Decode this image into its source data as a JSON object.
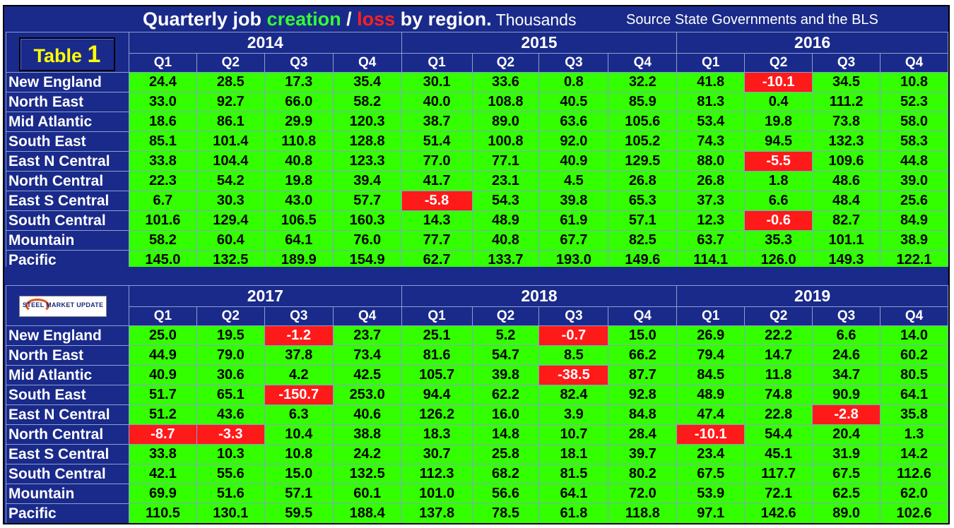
{
  "title": {
    "part1": "Quarterly job ",
    "creation": "creation",
    "slash": " / ",
    "loss": "loss",
    "part2": " by region.",
    "units": "Thousands",
    "source": "Source State Governments and the BLS"
  },
  "badge": {
    "label": "Table ",
    "number": "1"
  },
  "logo": {
    "text": "STEEL MARKET UPDATE"
  },
  "quarters": [
    "Q1",
    "Q2",
    "Q3",
    "Q4"
  ],
  "top": {
    "years": [
      "2014",
      "2015",
      "2016"
    ],
    "rows": [
      {
        "region": "New England",
        "values": [
          "24.4",
          "28.5",
          "17.3",
          "35.4",
          "30.1",
          "33.6",
          "0.8",
          "32.2",
          "41.8",
          "-10.1",
          "34.5",
          "10.8"
        ]
      },
      {
        "region": "North East",
        "values": [
          "33.0",
          "92.7",
          "66.0",
          "58.2",
          "40.0",
          "108.8",
          "40.5",
          "85.9",
          "81.3",
          "0.4",
          "111.2",
          "52.3"
        ]
      },
      {
        "region": "Mid Atlantic",
        "values": [
          "18.6",
          "86.1",
          "29.9",
          "120.3",
          "38.7",
          "89.0",
          "63.6",
          "105.6",
          "53.4",
          "19.8",
          "73.8",
          "58.0"
        ]
      },
      {
        "region": "South East",
        "values": [
          "85.1",
          "101.4",
          "110.8",
          "128.8",
          "51.4",
          "100.8",
          "92.0",
          "105.2",
          "74.3",
          "94.5",
          "132.3",
          "58.3"
        ]
      },
      {
        "region": "East N Central",
        "values": [
          "33.8",
          "104.4",
          "40.8",
          "123.3",
          "77.0",
          "77.1",
          "40.9",
          "129.5",
          "88.0",
          "-5.5",
          "109.6",
          "44.8"
        ]
      },
      {
        "region": "North Central",
        "values": [
          "22.3",
          "54.2",
          "19.8",
          "39.4",
          "41.7",
          "23.1",
          "4.5",
          "26.8",
          "26.8",
          "1.8",
          "48.6",
          "39.0"
        ]
      },
      {
        "region": "East S Central",
        "values": [
          "6.7",
          "30.3",
          "43.0",
          "57.7",
          "-5.8",
          "54.3",
          "39.8",
          "65.3",
          "37.3",
          "6.6",
          "48.4",
          "25.6"
        ]
      },
      {
        "region": "South Central",
        "values": [
          "101.6",
          "129.4",
          "106.5",
          "160.3",
          "14.3",
          "48.9",
          "61.9",
          "57.1",
          "12.3",
          "-0.6",
          "82.7",
          "84.9"
        ]
      },
      {
        "region": "Mountain",
        "values": [
          "58.2",
          "60.4",
          "64.1",
          "76.0",
          "77.7",
          "40.8",
          "67.7",
          "82.5",
          "63.7",
          "35.3",
          "101.1",
          "38.9"
        ]
      },
      {
        "region": "Pacific",
        "values": [
          "145.0",
          "132.5",
          "189.9",
          "154.9",
          "62.7",
          "133.7",
          "193.0",
          "149.6",
          "114.1",
          "126.0",
          "149.3",
          "122.1"
        ]
      }
    ]
  },
  "bottom": {
    "years": [
      "2017",
      "2018",
      "2019"
    ],
    "rows": [
      {
        "region": "New England",
        "values": [
          "25.0",
          "19.5",
          "-1.2",
          "23.7",
          "25.1",
          "5.2",
          "-0.7",
          "15.0",
          "26.9",
          "22.2",
          "6.6",
          "14.0"
        ]
      },
      {
        "region": "North East",
        "values": [
          "44.9",
          "79.0",
          "37.8",
          "73.4",
          "81.6",
          "54.7",
          "8.5",
          "66.2",
          "79.4",
          "14.7",
          "24.6",
          "60.2"
        ]
      },
      {
        "region": "Mid Atlantic",
        "values": [
          "40.9",
          "30.6",
          "4.2",
          "42.5",
          "105.7",
          "39.8",
          "-38.5",
          "87.7",
          "84.5",
          "11.8",
          "34.7",
          "80.5"
        ]
      },
      {
        "region": "South East",
        "values": [
          "51.7",
          "65.1",
          "-150.7",
          "253.0",
          "94.4",
          "62.2",
          "82.4",
          "92.8",
          "48.9",
          "74.8",
          "90.9",
          "64.1"
        ]
      },
      {
        "region": "East N Central",
        "values": [
          "51.2",
          "43.6",
          "6.3",
          "40.6",
          "126.2",
          "16.0",
          "3.9",
          "84.8",
          "47.4",
          "22.8",
          "-2.8",
          "35.8"
        ]
      },
      {
        "region": "North Central",
        "values": [
          "-8.7",
          "-3.3",
          "10.4",
          "38.8",
          "18.3",
          "14.8",
          "10.7",
          "28.4",
          "-10.1",
          "54.4",
          "20.4",
          "1.3"
        ]
      },
      {
        "region": "East S Central",
        "values": [
          "33.8",
          "10.3",
          "10.8",
          "24.2",
          "30.7",
          "25.8",
          "18.1",
          "39.7",
          "23.4",
          "45.1",
          "31.9",
          "14.2"
        ]
      },
      {
        "region": "South Central",
        "values": [
          "42.1",
          "55.6",
          "15.0",
          "132.5",
          "112.3",
          "68.2",
          "81.5",
          "80.2",
          "67.5",
          "117.7",
          "67.5",
          "112.6"
        ]
      },
      {
        "region": "Mountain",
        "values": [
          "69.9",
          "51.6",
          "57.1",
          "60.1",
          "101.0",
          "56.6",
          "64.1",
          "72.0",
          "53.9",
          "72.1",
          "62.5",
          "62.0"
        ]
      },
      {
        "region": "Pacific",
        "values": [
          "110.5",
          "130.1",
          "59.5",
          "188.4",
          "137.8",
          "78.5",
          "61.8",
          "118.8",
          "97.1",
          "142.6",
          "89.0",
          "102.6"
        ]
      }
    ]
  },
  "colors": {
    "background": "#1a2a8a",
    "positive": "#33ff00",
    "negative": "#ff1a1a",
    "title_text": "#ffffff",
    "badge_text": "#ffff00"
  }
}
